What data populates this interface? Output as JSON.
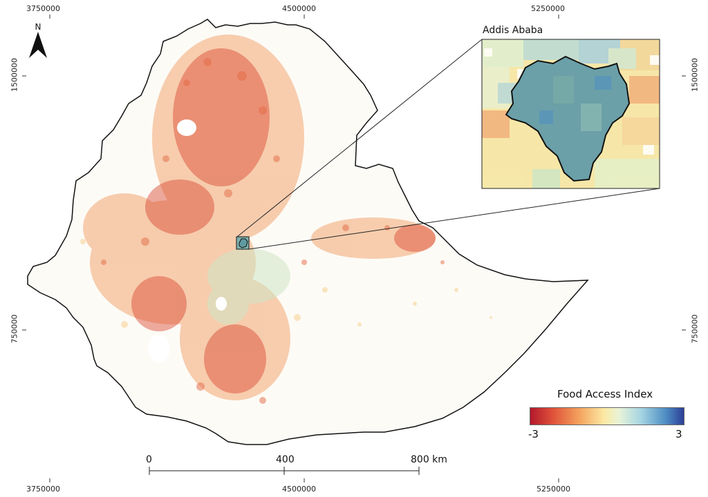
{
  "inset": {
    "title": "Addis Ababa"
  },
  "legend": {
    "title": "Food Access Index",
    "min_label": "-3",
    "max_label": "3",
    "colors": [
      "#b2182b",
      "#e0533a",
      "#f4a35e",
      "#fce9a3",
      "#e8f3d8",
      "#a6d5e2",
      "#4f8ec4",
      "#2c3f96"
    ]
  },
  "north_arrow": {
    "letter": "N",
    "icon": "north-arrow-icon"
  },
  "grid": {
    "top_labels": [
      "3750000",
      "4500000",
      "5250000"
    ],
    "bottom_labels": [
      "3750000",
      "4500000",
      "5250000"
    ],
    "left_labels": [
      "1500000",
      "750000"
    ],
    "right_labels": [
      "1500000",
      "750000"
    ]
  },
  "scale_bar": {
    "labels": [
      "0",
      "400",
      "800 km"
    ]
  }
}
